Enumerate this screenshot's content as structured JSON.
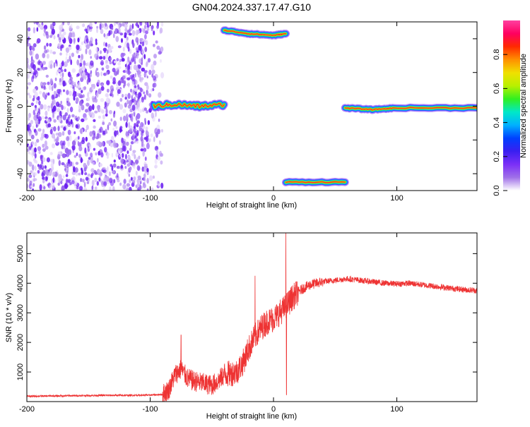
{
  "title": "GN04.2024.337.17.47.G10",
  "chart_data": [
    {
      "type": "heatmap",
      "xlabel": "Height of straight line (km)",
      "ylabel": "Frequency (Hz)",
      "xlim": [
        -200,
        165
      ],
      "ylim": [
        -50,
        50
      ],
      "xticks": [
        -200,
        -100,
        0,
        100
      ],
      "yticks": [
        -40,
        -20,
        0,
        20,
        40
      ],
      "colorbar": {
        "label": "Normalized spectral amplitude",
        "range": [
          0,
          1
        ],
        "ticks": [
          "0.0",
          "0.2",
          "0.4",
          "0.6",
          "0.8"
        ],
        "colors": [
          "#ffffff",
          "#a070e8",
          "#7b2ff7",
          "#3a1ff0",
          "#0040ff",
          "#00b0ff",
          "#00e8c8",
          "#30f020",
          "#b8f000",
          "#f0e000",
          "#ff9000",
          "#ff2a00",
          "#ff0060",
          "#ff40a0"
        ]
      },
      "noise_region": {
        "x": [
          -200,
          -90
        ],
        "y": [
          -50,
          50
        ]
      },
      "tracks": [
        {
          "x": [
            -97,
            -80,
            -60,
            -40
          ],
          "y": [
            0,
            1,
            0,
            1
          ]
        },
        {
          "x": [
            -40,
            -20,
            0,
            10
          ],
          "y": [
            45,
            43,
            42,
            43
          ]
        },
        {
          "x": [
            10,
            58
          ],
          "y": [
            -45,
            -45
          ]
        },
        {
          "x": [
            58,
            80,
            100,
            165
          ],
          "y": [
            -1,
            -2,
            -1,
            -1
          ]
        }
      ]
    },
    {
      "type": "line",
      "xlabel": "Height of straight line (km)",
      "ylabel": "SNR (10 * v/v)",
      "xlim": [
        -200,
        165
      ],
      "ylim": [
        0,
        5700
      ],
      "xticks": [
        -200,
        -100,
        0,
        100
      ],
      "yticks": [
        1000,
        2000,
        3000,
        4000,
        5000
      ],
      "series": [
        {
          "color": "#ee3333",
          "x": [
            -200,
            -180,
            -160,
            -140,
            -120,
            -100,
            -90,
            -85,
            -80,
            -75,
            -70,
            -65,
            -60,
            -55,
            -50,
            -45,
            -40,
            -35,
            -30,
            -25,
            -20,
            -15,
            -10,
            -5,
            0,
            5,
            10,
            15,
            20,
            25,
            30,
            40,
            50,
            60,
            70,
            80,
            90,
            100,
            110,
            120,
            130,
            140,
            150,
            165
          ],
          "y": [
            180,
            190,
            200,
            210,
            210,
            220,
            240,
            400,
            900,
            1100,
            800,
            700,
            650,
            600,
            550,
            700,
            900,
            950,
            1000,
            1300,
            1800,
            2200,
            2500,
            2700,
            2800,
            3000,
            3200,
            3500,
            3700,
            3850,
            3950,
            4050,
            4100,
            4150,
            4100,
            4050,
            4000,
            3980,
            4000,
            3950,
            3900,
            3850,
            3800,
            3750
          ]
        }
      ],
      "spikes": [
        {
          "x": 10,
          "y": 5700
        },
        {
          "x": 10.5,
          "y": 230
        },
        {
          "x": -15,
          "y": 4250
        },
        {
          "x": -75,
          "y": 2250
        }
      ]
    }
  ]
}
